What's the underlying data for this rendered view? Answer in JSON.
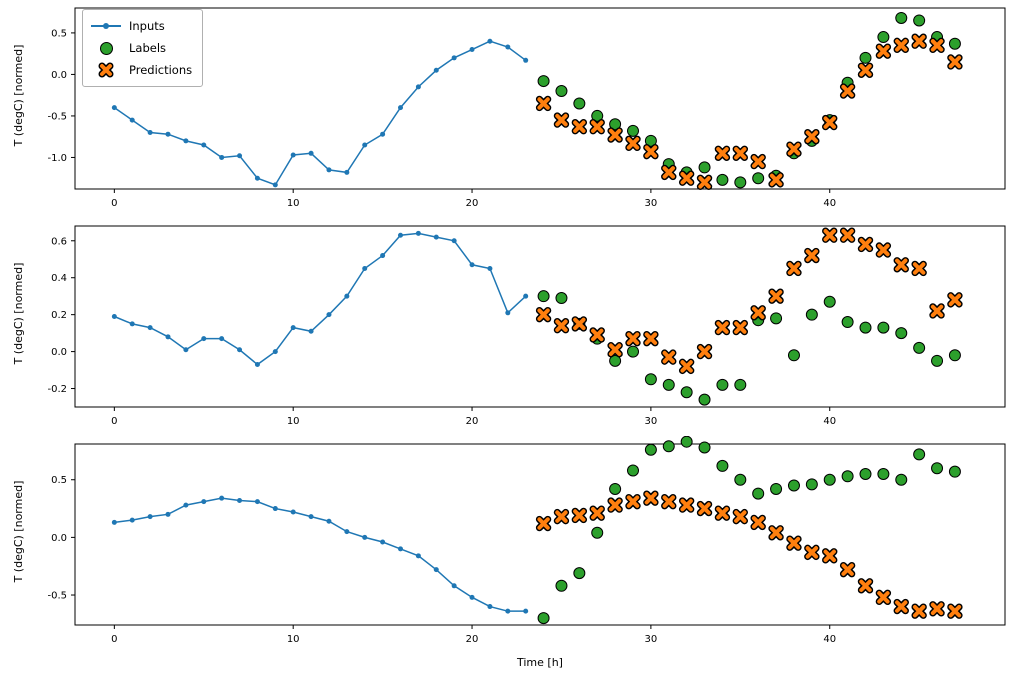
{
  "figure": {
    "xlabel": "Time [h]",
    "ylabel": "T (degC) [normed]",
    "legend": {
      "inputs": "Inputs",
      "labels": "Labels",
      "predictions": "Predictions"
    },
    "colors": {
      "inputs": "#1f77b4",
      "labels": "#2ca02c",
      "predictions": "#ff7f0e",
      "marker_edge": "#000000",
      "frame": "#000000",
      "background": "#ffffff"
    }
  },
  "chart_data": [
    {
      "type": "line",
      "title": "",
      "ylabel": "T (degC) [normed]",
      "xlabel": "",
      "xlim": [
        -2.2,
        49.8
      ],
      "ylim": [
        -1.38,
        0.8
      ],
      "xticks": [
        0,
        10,
        20,
        30,
        40
      ],
      "yticks": [
        0.5,
        0.0,
        -0.5,
        -1.0
      ],
      "grid": false,
      "legend_position": "upper left",
      "series": [
        {
          "name": "Inputs",
          "style": "line-dot",
          "color_key": "inputs",
          "x": [
            0,
            1,
            2,
            3,
            4,
            5,
            6,
            7,
            8,
            9,
            10,
            11,
            12,
            13,
            14,
            15,
            16,
            17,
            18,
            19,
            20,
            21,
            22,
            23
          ],
          "y": [
            -0.4,
            -0.55,
            -0.7,
            -0.72,
            -0.8,
            -0.85,
            -1.0,
            -0.98,
            -1.25,
            -1.33,
            -0.97,
            -0.95,
            -1.15,
            -1.18,
            -0.85,
            -0.72,
            -0.4,
            -0.15,
            0.05,
            0.2,
            0.3,
            0.4,
            0.33,
            0.17
          ]
        },
        {
          "name": "Labels",
          "style": "scatter-circle",
          "color_key": "labels",
          "x": [
            24,
            25,
            26,
            27,
            28,
            29,
            30,
            31,
            32,
            33,
            34,
            35,
            36,
            37,
            38,
            39,
            40,
            41,
            42,
            43,
            44,
            45,
            46,
            47
          ],
          "y": [
            -0.08,
            -0.2,
            -0.35,
            -0.5,
            -0.6,
            -0.68,
            -0.8,
            -1.08,
            -1.18,
            -1.12,
            -1.27,
            -1.3,
            -1.25,
            -1.22,
            -0.95,
            -0.8,
            -0.55,
            -0.1,
            0.2,
            0.45,
            0.68,
            0.65,
            0.45,
            0.37
          ]
        },
        {
          "name": "Predictions",
          "style": "scatter-x",
          "color_key": "predictions",
          "x": [
            24,
            25,
            26,
            27,
            28,
            29,
            30,
            31,
            32,
            33,
            34,
            35,
            36,
            37,
            38,
            39,
            40,
            41,
            42,
            43,
            44,
            45,
            46,
            47
          ],
          "y": [
            -0.35,
            -0.55,
            -0.63,
            -0.63,
            -0.73,
            -0.83,
            -0.93,
            -1.18,
            -1.25,
            -1.3,
            -0.95,
            -0.95,
            -1.05,
            -1.27,
            -0.9,
            -0.75,
            -0.58,
            -0.2,
            0.05,
            0.28,
            0.35,
            0.4,
            0.35,
            0.15
          ]
        }
      ]
    },
    {
      "type": "line",
      "title": "",
      "ylabel": "T (degC) [normed]",
      "xlabel": "",
      "xlim": [
        -2.2,
        49.8
      ],
      "ylim": [
        -0.3,
        0.68
      ],
      "xticks": [
        0,
        10,
        20,
        30,
        40
      ],
      "yticks": [
        0.6,
        0.4,
        0.2,
        0.0,
        -0.2
      ],
      "grid": false,
      "legend_position": "none",
      "series": [
        {
          "name": "Inputs",
          "style": "line-dot",
          "color_key": "inputs",
          "x": [
            0,
            1,
            2,
            3,
            4,
            5,
            6,
            7,
            8,
            9,
            10,
            11,
            12,
            13,
            14,
            15,
            16,
            17,
            18,
            19,
            20,
            21,
            22,
            23
          ],
          "y": [
            0.19,
            0.15,
            0.13,
            0.08,
            0.01,
            0.07,
            0.07,
            0.01,
            -0.07,
            0.0,
            0.13,
            0.11,
            0.2,
            0.3,
            0.45,
            0.52,
            0.63,
            0.64,
            0.62,
            0.6,
            0.47,
            0.45,
            0.21,
            0.3
          ]
        },
        {
          "name": "Labels",
          "style": "scatter-circle",
          "color_key": "labels",
          "x": [
            24,
            25,
            26,
            27,
            28,
            29,
            30,
            31,
            32,
            33,
            34,
            35,
            36,
            37,
            38,
            39,
            40,
            41,
            42,
            43,
            44,
            45,
            46,
            47
          ],
          "y": [
            0.3,
            0.29,
            0.15,
            0.07,
            -0.05,
            0.0,
            -0.15,
            -0.18,
            -0.22,
            -0.26,
            -0.18,
            -0.18,
            0.17,
            0.18,
            -0.02,
            0.2,
            0.27,
            0.16,
            0.13,
            0.13,
            0.1,
            0.02,
            -0.05,
            -0.02
          ]
        },
        {
          "name": "Predictions",
          "style": "scatter-x",
          "color_key": "predictions",
          "x": [
            24,
            25,
            26,
            27,
            28,
            29,
            30,
            31,
            32,
            33,
            34,
            35,
            36,
            37,
            38,
            39,
            40,
            41,
            42,
            43,
            44,
            45,
            46,
            47
          ],
          "y": [
            0.2,
            0.14,
            0.15,
            0.09,
            0.01,
            0.07,
            0.07,
            -0.03,
            -0.08,
            0.0,
            0.13,
            0.13,
            0.21,
            0.3,
            0.45,
            0.52,
            0.63,
            0.63,
            0.58,
            0.55,
            0.47,
            0.45,
            0.22,
            0.28
          ]
        }
      ]
    },
    {
      "type": "line",
      "title": "",
      "ylabel": "T (degC) [normed]",
      "xlabel": "Time [h]",
      "xlim": [
        -2.2,
        49.8
      ],
      "ylim": [
        -0.76,
        0.81
      ],
      "xticks": [
        0,
        10,
        20,
        30,
        40
      ],
      "yticks": [
        0.5,
        0.0,
        -0.5
      ],
      "grid": false,
      "legend_position": "none",
      "series": [
        {
          "name": "Inputs",
          "style": "line-dot",
          "color_key": "inputs",
          "x": [
            0,
            1,
            2,
            3,
            4,
            5,
            6,
            7,
            8,
            9,
            10,
            11,
            12,
            13,
            14,
            15,
            16,
            17,
            18,
            19,
            20,
            21,
            22,
            23
          ],
          "y": [
            0.13,
            0.15,
            0.18,
            0.2,
            0.28,
            0.31,
            0.34,
            0.32,
            0.31,
            0.25,
            0.22,
            0.18,
            0.14,
            0.05,
            0.0,
            -0.04,
            -0.1,
            -0.16,
            -0.28,
            -0.42,
            -0.52,
            -0.6,
            -0.64,
            -0.64
          ]
        },
        {
          "name": "Labels",
          "style": "scatter-circle",
          "color_key": "labels",
          "x": [
            24,
            25,
            26,
            27,
            28,
            29,
            30,
            31,
            32,
            33,
            34,
            35,
            36,
            37,
            38,
            39,
            40,
            41,
            42,
            43,
            44,
            45,
            46,
            47
          ],
          "y": [
            -0.7,
            -0.42,
            -0.31,
            0.04,
            0.42,
            0.58,
            0.76,
            0.79,
            0.83,
            0.78,
            0.62,
            0.5,
            0.38,
            0.42,
            0.45,
            0.46,
            0.5,
            0.53,
            0.55,
            0.55,
            0.5,
            0.72,
            0.6,
            0.57
          ]
        },
        {
          "name": "Predictions",
          "style": "scatter-x",
          "color_key": "predictions",
          "x": [
            24,
            25,
            26,
            27,
            28,
            29,
            30,
            31,
            32,
            33,
            34,
            35,
            36,
            37,
            38,
            39,
            40,
            41,
            42,
            43,
            44,
            45,
            46,
            47
          ],
          "y": [
            0.12,
            0.18,
            0.19,
            0.21,
            0.28,
            0.31,
            0.34,
            0.31,
            0.28,
            0.25,
            0.21,
            0.18,
            0.13,
            0.04,
            -0.05,
            -0.13,
            -0.16,
            -0.28,
            -0.42,
            -0.52,
            -0.6,
            -0.64,
            -0.62,
            -0.64
          ]
        }
      ]
    }
  ]
}
